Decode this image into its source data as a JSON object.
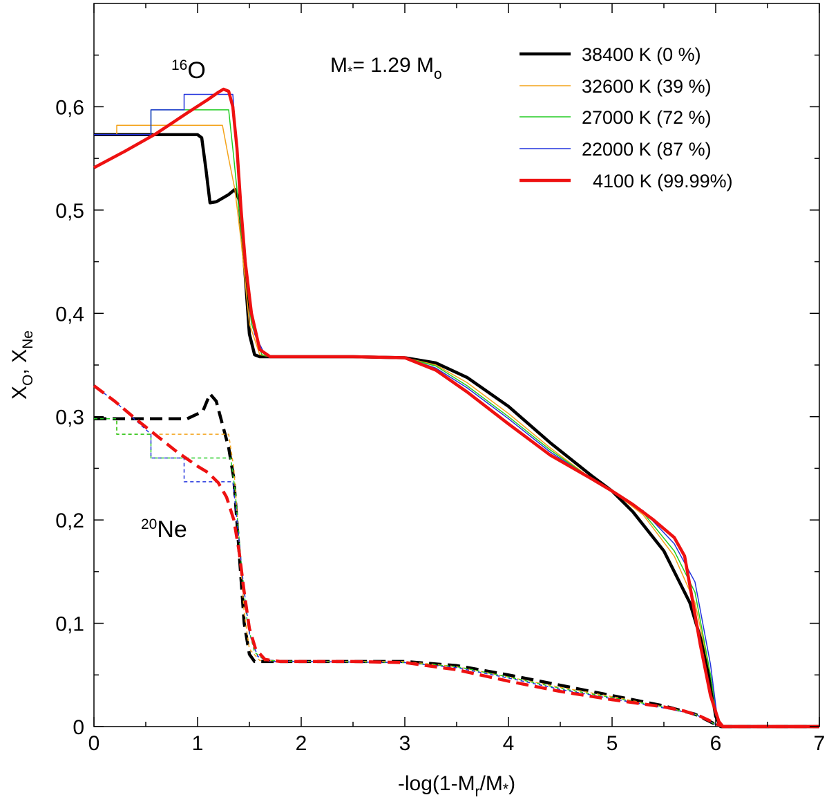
{
  "chart_data": {
    "type": "line",
    "xlabel": {
      "prefix": "-log(1-M",
      "sub_r": "r",
      "mid": "/M",
      "sub_star": "*",
      "suffix": ")"
    },
    "ylabel": {
      "x": "X",
      "sub_o": "O",
      "sep": ", X",
      "sub_ne": "Ne"
    },
    "xlim": [
      0,
      7
    ],
    "ylim": [
      0,
      0.7
    ],
    "x_ticks": [
      0,
      1,
      2,
      3,
      4,
      5,
      6,
      7
    ],
    "x_tick_labels": [
      "0",
      "1",
      "2",
      "3",
      "4",
      "5",
      "6",
      "7"
    ],
    "y_ticks": [
      0,
      0.1,
      0.2,
      0.3,
      0.4,
      0.5,
      0.6
    ],
    "y_tick_labels": [
      "0",
      "0,1",
      "0,2",
      "0,3",
      "0,4",
      "0,5",
      "0,6"
    ],
    "annotations": {
      "oxygen": {
        "sup": "16",
        "text": "O"
      },
      "neon": {
        "sup": "20",
        "text": "Ne"
      },
      "mass": {
        "m": "M",
        "sub_star": "*",
        "eq": "= 1.29 M",
        "sub_o": "o"
      }
    },
    "series": [
      {
        "name": "38400 K (0 %)",
        "color": "#000000",
        "width": 4.5,
        "oxygen": [
          [
            0,
            0.573
          ],
          [
            0.5,
            0.573
          ],
          [
            1.0,
            0.573
          ],
          [
            1.04,
            0.57
          ],
          [
            1.08,
            0.54
          ],
          [
            1.12,
            0.507
          ],
          [
            1.18,
            0.508
          ],
          [
            1.3,
            0.515
          ],
          [
            1.36,
            0.52
          ],
          [
            1.4,
            0.51
          ],
          [
            1.45,
            0.45
          ],
          [
            1.5,
            0.38
          ],
          [
            1.55,
            0.36
          ],
          [
            1.6,
            0.358
          ],
          [
            2,
            0.358
          ],
          [
            2.5,
            0.358
          ],
          [
            3,
            0.357
          ],
          [
            3.3,
            0.352
          ],
          [
            3.6,
            0.338
          ],
          [
            4,
            0.31
          ],
          [
            4.4,
            0.275
          ],
          [
            4.8,
            0.243
          ],
          [
            5.0,
            0.228
          ],
          [
            5.2,
            0.208
          ],
          [
            5.5,
            0.17
          ],
          [
            5.75,
            0.12
          ],
          [
            5.9,
            0.07
          ],
          [
            6.0,
            0.01
          ],
          [
            6.05,
            0
          ],
          [
            7,
            0
          ]
        ],
        "neon": [
          [
            0,
            0.298
          ],
          [
            0.5,
            0.298
          ],
          [
            0.9,
            0.298
          ],
          [
            1.05,
            0.305
          ],
          [
            1.12,
            0.322
          ],
          [
            1.18,
            0.315
          ],
          [
            1.26,
            0.285
          ],
          [
            1.3,
            0.27
          ],
          [
            1.35,
            0.24
          ],
          [
            1.4,
            0.17
          ],
          [
            1.45,
            0.1
          ],
          [
            1.5,
            0.07
          ],
          [
            1.55,
            0.063
          ],
          [
            2,
            0.063
          ],
          [
            3,
            0.063
          ],
          [
            3.5,
            0.059
          ],
          [
            4,
            0.05
          ],
          [
            4.5,
            0.04
          ],
          [
            5,
            0.03
          ],
          [
            5.5,
            0.02
          ],
          [
            5.8,
            0.012
          ],
          [
            6.0,
            0.002
          ],
          [
            6.05,
            0
          ],
          [
            7,
            0
          ]
        ]
      },
      {
        "name": "32600 K (39 %)",
        "color": "#f4a31a",
        "width": 1.5,
        "oxygen": [
          [
            0,
            0.573
          ],
          [
            0.22,
            0.573
          ],
          [
            0.22,
            0.582
          ],
          [
            1.24,
            0.582
          ],
          [
            1.3,
            0.55
          ],
          [
            1.36,
            0.52
          ],
          [
            1.42,
            0.47
          ],
          [
            1.5,
            0.39
          ],
          [
            1.6,
            0.36
          ],
          [
            1.7,
            0.358
          ],
          [
            2,
            0.358
          ],
          [
            3,
            0.357
          ],
          [
            3.3,
            0.35
          ],
          [
            3.6,
            0.333
          ],
          [
            4,
            0.303
          ],
          [
            4.4,
            0.27
          ],
          [
            4.8,
            0.24
          ],
          [
            5.0,
            0.228
          ],
          [
            5.3,
            0.205
          ],
          [
            5.6,
            0.165
          ],
          [
            5.8,
            0.12
          ],
          [
            5.95,
            0.05
          ],
          [
            6.02,
            0.005
          ],
          [
            6.06,
            0
          ],
          [
            7,
            0
          ]
        ],
        "neon": [
          [
            0,
            0.298
          ],
          [
            0.22,
            0.298
          ],
          [
            0.22,
            0.283
          ],
          [
            1.3,
            0.283
          ],
          [
            1.35,
            0.25
          ],
          [
            1.4,
            0.18
          ],
          [
            1.45,
            0.11
          ],
          [
            1.5,
            0.075
          ],
          [
            1.6,
            0.064
          ],
          [
            2,
            0.063
          ],
          [
            3,
            0.063
          ],
          [
            3.5,
            0.058
          ],
          [
            4,
            0.048
          ],
          [
            4.5,
            0.038
          ],
          [
            5,
            0.029
          ],
          [
            5.5,
            0.019
          ],
          [
            5.8,
            0.012
          ],
          [
            6.0,
            0.002
          ],
          [
            6.06,
            0
          ],
          [
            7,
            0
          ]
        ]
      },
      {
        "name": "27000 K (72 %)",
        "color": "#22cc22",
        "width": 1.5,
        "oxygen": [
          [
            0,
            0.573
          ],
          [
            0.22,
            0.573
          ],
          [
            0.55,
            0.573
          ],
          [
            0.55,
            0.597
          ],
          [
            1.3,
            0.597
          ],
          [
            1.35,
            0.55
          ],
          [
            1.4,
            0.5
          ],
          [
            1.45,
            0.45
          ],
          [
            1.52,
            0.39
          ],
          [
            1.62,
            0.36
          ],
          [
            1.7,
            0.358
          ],
          [
            2,
            0.358
          ],
          [
            3,
            0.357
          ],
          [
            3.3,
            0.349
          ],
          [
            3.6,
            0.33
          ],
          [
            4,
            0.3
          ],
          [
            4.4,
            0.268
          ],
          [
            4.8,
            0.24
          ],
          [
            5.0,
            0.228
          ],
          [
            5.3,
            0.207
          ],
          [
            5.6,
            0.17
          ],
          [
            5.8,
            0.13
          ],
          [
            5.95,
            0.05
          ],
          [
            6.02,
            0.005
          ],
          [
            6.06,
            0
          ],
          [
            7,
            0
          ]
        ],
        "neon": [
          [
            0,
            0.298
          ],
          [
            0.22,
            0.298
          ],
          [
            0.22,
            0.283
          ],
          [
            0.55,
            0.283
          ],
          [
            0.55,
            0.26
          ],
          [
            1.32,
            0.26
          ],
          [
            1.36,
            0.23
          ],
          [
            1.42,
            0.16
          ],
          [
            1.48,
            0.1
          ],
          [
            1.55,
            0.072
          ],
          [
            1.65,
            0.064
          ],
          [
            2,
            0.063
          ],
          [
            3,
            0.062
          ],
          [
            3.5,
            0.058
          ],
          [
            4,
            0.048
          ],
          [
            4.5,
            0.037
          ],
          [
            5,
            0.028
          ],
          [
            5.5,
            0.019
          ],
          [
            5.8,
            0.012
          ],
          [
            6.0,
            0.002
          ],
          [
            6.06,
            0
          ],
          [
            7,
            0
          ]
        ]
      },
      {
        "name": "22000 K (87 %)",
        "color": "#2233dd",
        "width": 1.5,
        "oxygen": [
          [
            0,
            0.573
          ],
          [
            0.55,
            0.573
          ],
          [
            0.55,
            0.597
          ],
          [
            0.87,
            0.597
          ],
          [
            0.87,
            0.612
          ],
          [
            1.34,
            0.612
          ],
          [
            1.38,
            0.56
          ],
          [
            1.42,
            0.5
          ],
          [
            1.47,
            0.44
          ],
          [
            1.55,
            0.38
          ],
          [
            1.65,
            0.36
          ],
          [
            1.75,
            0.358
          ],
          [
            2,
            0.358
          ],
          [
            3,
            0.357
          ],
          [
            3.3,
            0.347
          ],
          [
            3.6,
            0.328
          ],
          [
            4,
            0.298
          ],
          [
            4.4,
            0.266
          ],
          [
            4.8,
            0.24
          ],
          [
            5.0,
            0.228
          ],
          [
            5.3,
            0.209
          ],
          [
            5.6,
            0.177
          ],
          [
            5.8,
            0.14
          ],
          [
            5.95,
            0.06
          ],
          [
            6.02,
            0.005
          ],
          [
            6.06,
            0
          ],
          [
            7,
            0
          ]
        ],
        "neon": [
          [
            0,
            0.33
          ],
          [
            0.2,
            0.315
          ],
          [
            0.55,
            0.283
          ],
          [
            0.55,
            0.26
          ],
          [
            0.87,
            0.26
          ],
          [
            0.87,
            0.237
          ],
          [
            1.34,
            0.237
          ],
          [
            1.38,
            0.2
          ],
          [
            1.44,
            0.14
          ],
          [
            1.5,
            0.09
          ],
          [
            1.58,
            0.068
          ],
          [
            1.7,
            0.063
          ],
          [
            2,
            0.063
          ],
          [
            3,
            0.062
          ],
          [
            3.5,
            0.057
          ],
          [
            4,
            0.047
          ],
          [
            4.5,
            0.036
          ],
          [
            5,
            0.027
          ],
          [
            5.5,
            0.018
          ],
          [
            5.8,
            0.012
          ],
          [
            6.0,
            0.002
          ],
          [
            6.06,
            0
          ],
          [
            7,
            0
          ]
        ]
      },
      {
        "name": "4100 K (99.99%)",
        "color": "#ee1111",
        "width": 4.5,
        "oxygen": [
          [
            0,
            0.541
          ],
          [
            0.3,
            0.557
          ],
          [
            0.6,
            0.574
          ],
          [
            0.9,
            0.594
          ],
          [
            1.1,
            0.607
          ],
          [
            1.2,
            0.614
          ],
          [
            1.25,
            0.617
          ],
          [
            1.3,
            0.615
          ],
          [
            1.34,
            0.6
          ],
          [
            1.38,
            0.56
          ],
          [
            1.42,
            0.5
          ],
          [
            1.46,
            0.45
          ],
          [
            1.52,
            0.4
          ],
          [
            1.6,
            0.365
          ],
          [
            1.7,
            0.358
          ],
          [
            2,
            0.358
          ],
          [
            2.5,
            0.358
          ],
          [
            3,
            0.357
          ],
          [
            3.3,
            0.345
          ],
          [
            3.6,
            0.324
          ],
          [
            4,
            0.293
          ],
          [
            4.4,
            0.263
          ],
          [
            4.8,
            0.24
          ],
          [
            5.0,
            0.228
          ],
          [
            5.2,
            0.215
          ],
          [
            5.4,
            0.2
          ],
          [
            5.6,
            0.183
          ],
          [
            5.7,
            0.165
          ],
          [
            5.78,
            0.12
          ],
          [
            5.85,
            0.08
          ],
          [
            5.95,
            0.03
          ],
          [
            6.03,
            0.005
          ],
          [
            6.07,
            0
          ],
          [
            7,
            0
          ]
        ],
        "neon": [
          [
            0,
            0.33
          ],
          [
            0.2,
            0.315
          ],
          [
            0.4,
            0.298
          ],
          [
            0.6,
            0.282
          ],
          [
            0.8,
            0.266
          ],
          [
            1.0,
            0.252
          ],
          [
            1.1,
            0.246
          ],
          [
            1.2,
            0.236
          ],
          [
            1.28,
            0.222
          ],
          [
            1.35,
            0.2
          ],
          [
            1.4,
            0.17
          ],
          [
            1.45,
            0.13
          ],
          [
            1.5,
            0.095
          ],
          [
            1.56,
            0.075
          ],
          [
            1.65,
            0.065
          ],
          [
            1.8,
            0.063
          ],
          [
            2,
            0.063
          ],
          [
            2.5,
            0.063
          ],
          [
            3,
            0.062
          ],
          [
            3.5,
            0.055
          ],
          [
            4,
            0.044
          ],
          [
            4.5,
            0.034
          ],
          [
            5,
            0.026
          ],
          [
            5.5,
            0.019
          ],
          [
            5.7,
            0.015
          ],
          [
            5.85,
            0.01
          ],
          [
            6.0,
            0.003
          ],
          [
            6.07,
            0
          ],
          [
            7,
            0
          ]
        ]
      }
    ],
    "legend_placement": "top-right"
  }
}
